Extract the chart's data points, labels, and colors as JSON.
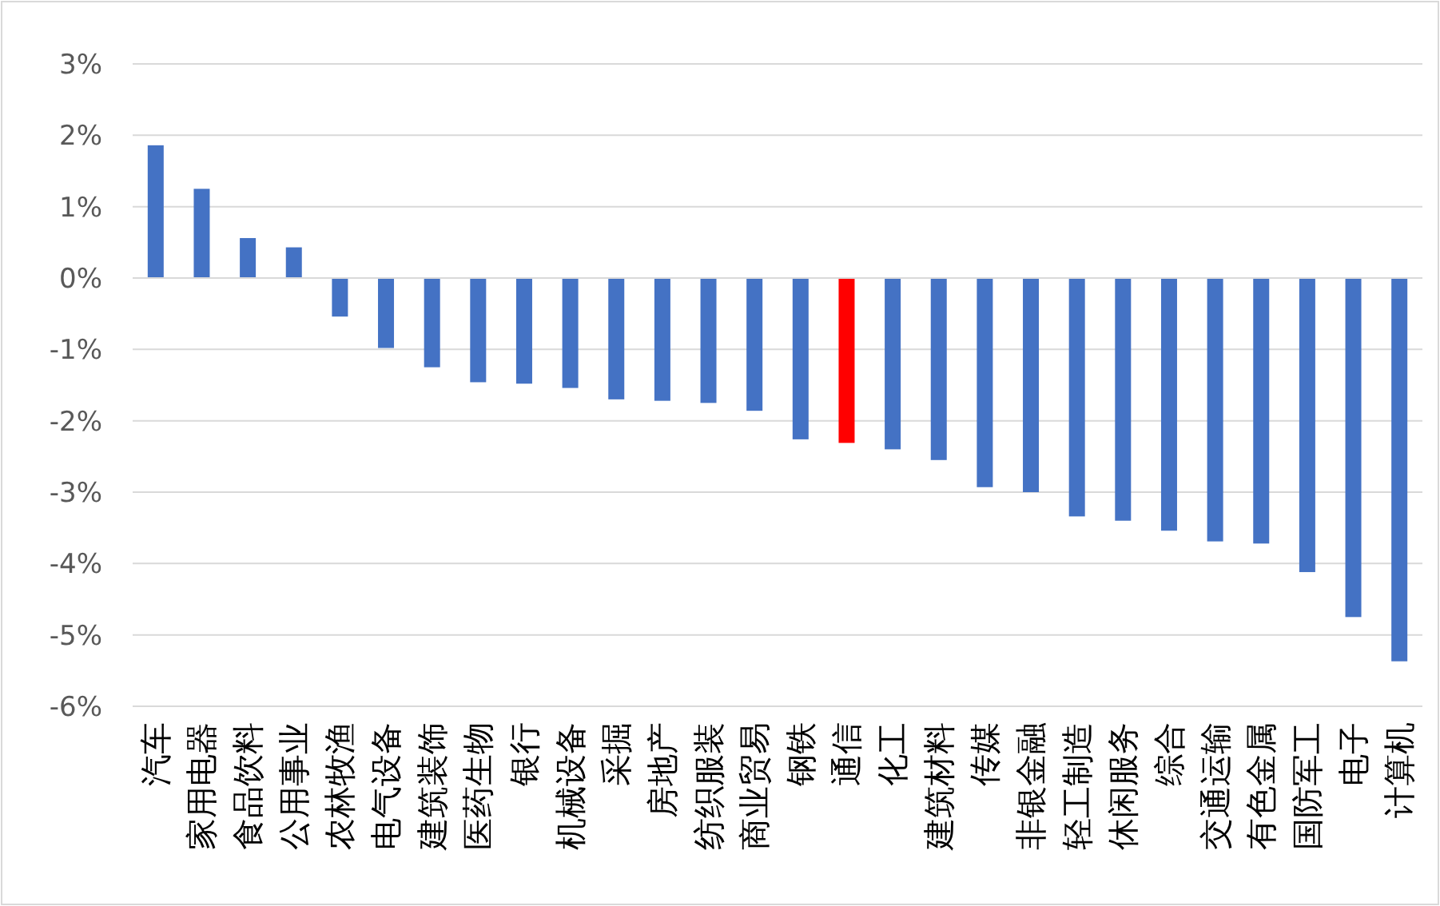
{
  "chart_data": {
    "type": "bar",
    "categories": [
      "汽车",
      "家用电器",
      "食品饮料",
      "公用事业",
      "农林牧渔",
      "电气设备",
      "建筑装饰",
      "医药生物",
      "银行",
      "机械设备",
      "采掘",
      "房地产",
      "纺织服装",
      "商业贸易",
      "钢铁",
      "通信",
      "化工",
      "建筑材料",
      "传媒",
      "非银金融",
      "轻工制造",
      "休闲服务",
      "综合",
      "交通运输",
      "有色金属",
      "国防军工",
      "电子",
      "计算机"
    ],
    "values": [
      1.86,
      1.25,
      0.56,
      0.43,
      -0.54,
      -0.98,
      -1.25,
      -1.46,
      -1.48,
      -1.54,
      -1.7,
      -1.72,
      -1.75,
      -1.86,
      -2.26,
      -2.31,
      -2.4,
      -2.55,
      -2.93,
      -3.0,
      -3.34,
      -3.4,
      -3.54,
      -3.69,
      -3.72,
      -4.12,
      -4.75,
      -5.37
    ],
    "colors": [
      "#4472c4",
      "#4472c4",
      "#4472c4",
      "#4472c4",
      "#4472c4",
      "#4472c4",
      "#4472c4",
      "#4472c4",
      "#4472c4",
      "#4472c4",
      "#4472c4",
      "#4472c4",
      "#4472c4",
      "#4472c4",
      "#4472c4",
      "#ff0000",
      "#4472c4",
      "#4472c4",
      "#4472c4",
      "#4472c4",
      "#4472c4",
      "#4472c4",
      "#4472c4",
      "#4472c4",
      "#4472c4",
      "#4472c4",
      "#4472c4",
      "#4472c4"
    ],
    "ylim": [
      -6,
      3
    ],
    "yticks": [
      {
        "value": 3,
        "label": "3%"
      },
      {
        "value": 2,
        "label": "2%"
      },
      {
        "value": 1,
        "label": "1%"
      },
      {
        "value": 0,
        "label": "0%"
      },
      {
        "value": -1,
        "label": "-1%"
      },
      {
        "value": -2,
        "label": "-2%"
      },
      {
        "value": -3,
        "label": "-3%"
      },
      {
        "value": -4,
        "label": "-4%"
      },
      {
        "value": -5,
        "label": "-5%"
      },
      {
        "value": -6,
        "label": "-6%"
      }
    ],
    "grid": "y"
  }
}
